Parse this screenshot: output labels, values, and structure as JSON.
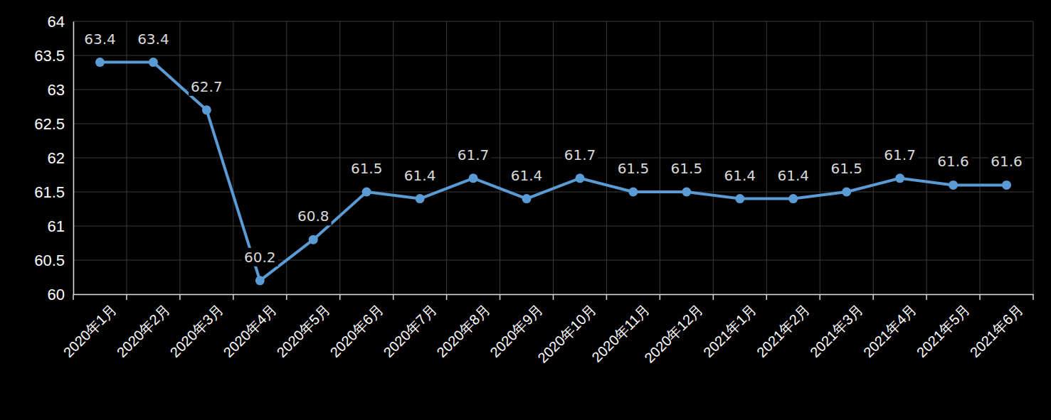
{
  "chart_data": {
    "type": "line",
    "categories": [
      "2020年1月",
      "2020年2月",
      "2020年3月",
      "2020年4月",
      "2020年5月",
      "2020年6月",
      "2020年7月",
      "2020年8月",
      "2020年9月",
      "2020年10月",
      "2020年11月",
      "2020年12月",
      "2021年1月",
      "2021年2月",
      "2021年3月",
      "2021年4月",
      "2021年5月",
      "2021年6月"
    ],
    "values": [
      63.4,
      63.4,
      62.7,
      60.2,
      60.8,
      61.5,
      61.4,
      61.7,
      61.4,
      61.7,
      61.5,
      61.5,
      61.4,
      61.4,
      61.5,
      61.7,
      61.6,
      61.6
    ],
    "color": "#5b9bd5",
    "marker": "circle",
    "ylim": [
      60,
      64
    ],
    "yticks": [
      60,
      60.5,
      61,
      61.5,
      62,
      62.5,
      63,
      63.5,
      64
    ],
    "grid": true,
    "data_labels": true
  }
}
